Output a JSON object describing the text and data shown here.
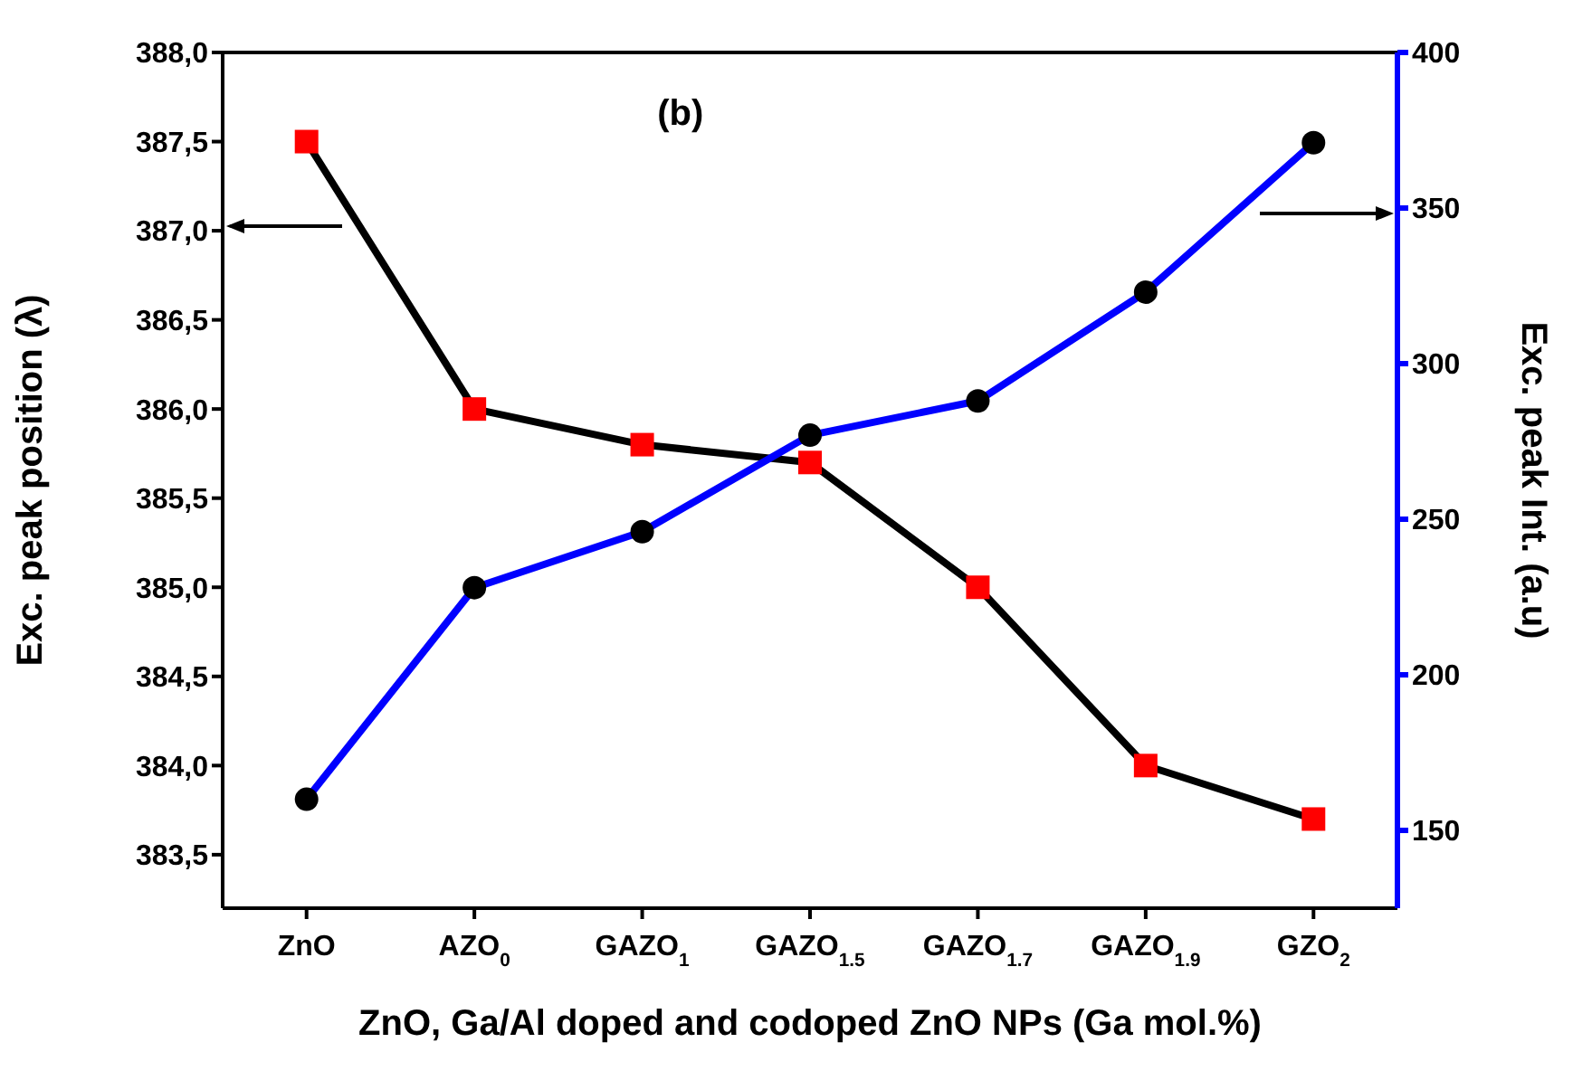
{
  "chart_data": {
    "type": "line",
    "title": "(b)",
    "xlabel": "ZnO, Ga/Al doped and codoped ZnO NPs (Ga mol.%)",
    "ylabel": "Exc. peak position (λ)",
    "y2label": "Exc. peak Int. (a.u)",
    "categories": [
      "ZnO",
      "AZO$_{0}$",
      "GAZO$_{1}$",
      "GAZO$_{1.5}$",
      "GAZO$_{1.7}$",
      "GAZO$_{1.9}$",
      "GZO$_{2}$"
    ],
    "series": [
      {
        "color": "#000000",
        "colors": [
          "#ff0000",
          "#ff0000",
          "#ff0000",
          "#ff0000",
          "#ff0000",
          "#ff0000",
          "#ff0000"
        ],
        "marker": "square",
        "values": [
          387.5,
          386.0,
          385.8,
          385.7,
          385.0,
          384.0,
          383.7
        ]
      },
      {
        "color": "#0000ff",
        "colors": [
          "#000000",
          "#000000",
          "#000000",
          "#000000",
          "#000000",
          "#000000",
          "#000000"
        ],
        "marker": "circle",
        "axis": "y2",
        "values": [
          160,
          228,
          246,
          277,
          288,
          323,
          371
        ]
      }
    ],
    "ylim": [
      383.2,
      388.0
    ],
    "yticks": [
      {
        "value": 383.5,
        "label": "383,5"
      },
      {
        "value": 384.0,
        "label": "384,0"
      },
      {
        "value": 384.5,
        "label": "384,5"
      },
      {
        "value": 385.0,
        "label": "385,0"
      },
      {
        "value": 385.5,
        "label": "385,5"
      },
      {
        "value": 386.0,
        "label": "386,0"
      },
      {
        "value": 386.5,
        "label": "386,5"
      },
      {
        "value": 387.0,
        "label": "387,0"
      },
      {
        "value": 387.5,
        "label": "387,5"
      },
      {
        "value": 388.0,
        "label": "388,0"
      }
    ],
    "y2lim": [
      125,
      400
    ],
    "y2ticks": [
      150,
      200,
      250,
      300,
      350,
      400
    ],
    "grid": false,
    "legend": false,
    "line_style": "solid"
  }
}
